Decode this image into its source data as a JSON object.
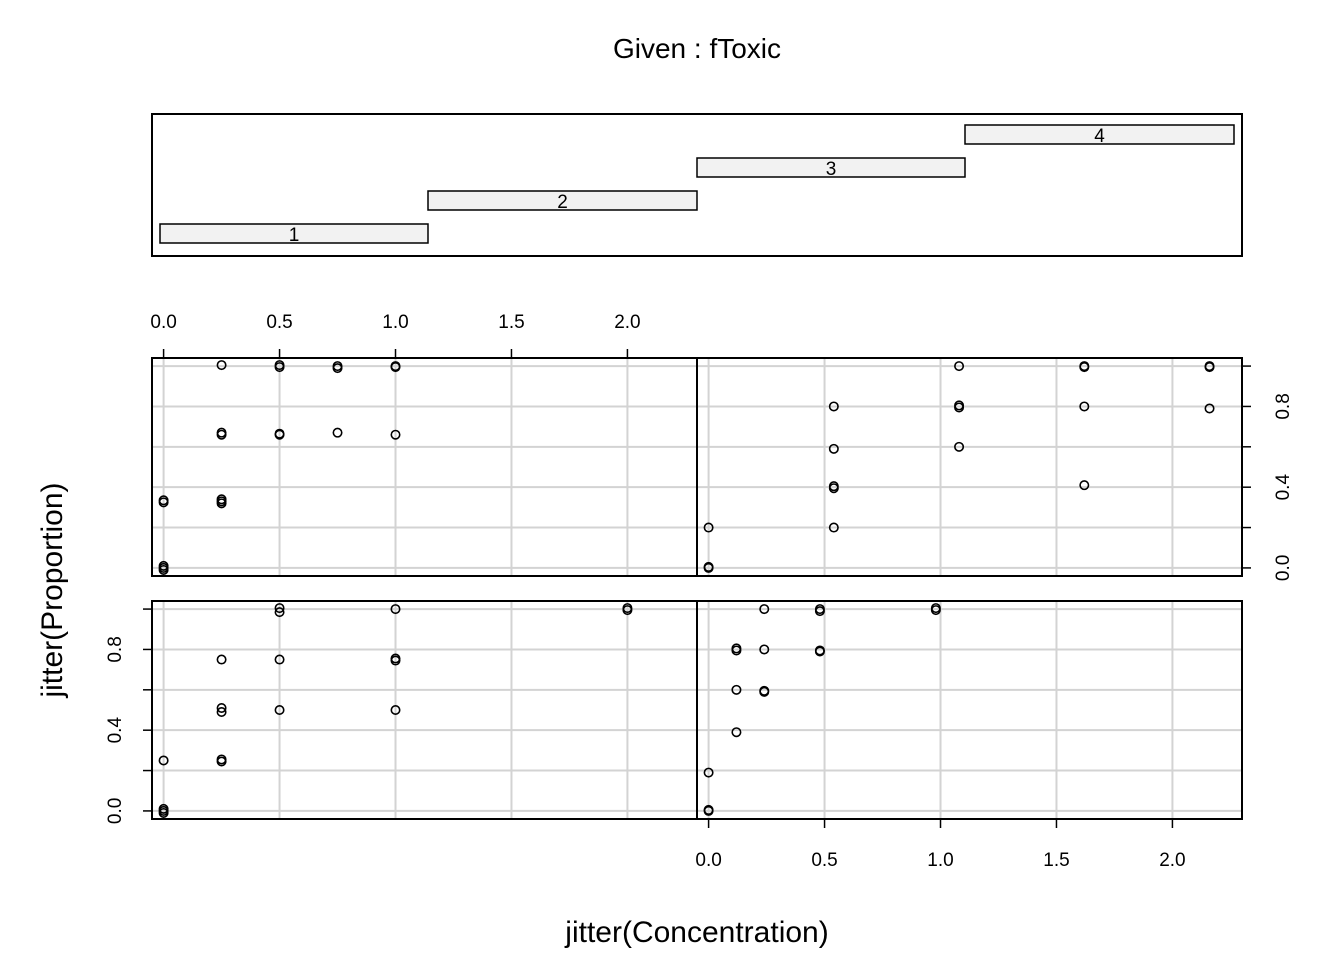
{
  "title": "Given : fToxic",
  "xlabel": "jitter(Concentration)",
  "ylabel": "jitter(Proportion)",
  "given_levels": [
    "1",
    "2",
    "3",
    "4"
  ],
  "x_tick_labels": [
    "0.0",
    "0.5",
    "1.0",
    "1.5",
    "2.0"
  ],
  "y_tick_labels": [
    "0.0",
    "0.4",
    "0.8"
  ],
  "chart_data": {
    "type": "scatter",
    "title": "Given : fToxic",
    "xlabel": "jitter(Concentration)",
    "ylabel": "jitter(Proportion)",
    "xlim": [
      -0.05,
      2.3
    ],
    "ylim": [
      -0.04,
      1.04
    ],
    "x_ticks": [
      0,
      0.5,
      1.0,
      1.5,
      2.0
    ],
    "y_ticks": [
      0,
      0.2,
      0.4,
      0.6,
      0.8,
      1.0
    ],
    "grid": true,
    "conditioning": {
      "variable": "fToxic",
      "levels": [
        "1",
        "2",
        "3",
        "4"
      ],
      "layout": "2x2",
      "order": "bottom-left, bottom-right, top-left, top-right"
    },
    "panels": [
      {
        "level": "1",
        "position": "bottom-left",
        "points": [
          [
            0,
            0
          ],
          [
            0,
            0.01
          ],
          [
            0,
            -0.01
          ],
          [
            0,
            0.25
          ],
          [
            0.25,
            0.245
          ],
          [
            0.25,
            0.255
          ],
          [
            0.25,
            0.49
          ],
          [
            0.25,
            0.51
          ],
          [
            0.25,
            0.75
          ],
          [
            0.5,
            0.5
          ],
          [
            0.5,
            0.75
          ],
          [
            0.5,
            0.985
          ],
          [
            0.5,
            1.005
          ],
          [
            1.0,
            0.5
          ],
          [
            1.0,
            0.745
          ],
          [
            1.0,
            0.755
          ],
          [
            1.0,
            1.0
          ],
          [
            2.0,
            0.995
          ],
          [
            2.0,
            1.005
          ]
        ]
      },
      {
        "level": "2",
        "position": "bottom-right",
        "points": [
          [
            0,
            0
          ],
          [
            0,
            0.005
          ],
          [
            0,
            0.19
          ],
          [
            0.12,
            0.39
          ],
          [
            0.12,
            0.6
          ],
          [
            0.12,
            0.795
          ],
          [
            0.12,
            0.805
          ],
          [
            0.24,
            0.59
          ],
          [
            0.24,
            0.595
          ],
          [
            0.24,
            0.8
          ],
          [
            0.24,
            1.0
          ],
          [
            0.48,
            0.79
          ],
          [
            0.48,
            0.795
          ],
          [
            0.48,
            0.99
          ],
          [
            0.48,
            1.0
          ],
          [
            0.98,
            0.995
          ],
          [
            0.98,
            1.005
          ]
        ]
      },
      {
        "level": "3",
        "position": "top-left",
        "points": [
          [
            0,
            0
          ],
          [
            0,
            0.01
          ],
          [
            0,
            -0.01
          ],
          [
            0,
            0.325
          ],
          [
            0,
            0.335
          ],
          [
            0.25,
            0.32
          ],
          [
            0.25,
            0.33
          ],
          [
            0.25,
            0.34
          ],
          [
            0.25,
            0.66
          ],
          [
            0.25,
            0.67
          ],
          [
            0.25,
            1.005
          ],
          [
            0.5,
            0.66
          ],
          [
            0.5,
            0.665
          ],
          [
            0.5,
            0.995
          ],
          [
            0.5,
            1.005
          ],
          [
            0.75,
            0.67
          ],
          [
            0.75,
            0.99
          ],
          [
            0.75,
            1.0
          ],
          [
            1.0,
            0.66
          ],
          [
            1.0,
            0.995
          ],
          [
            1.0,
            1.0
          ]
        ]
      },
      {
        "level": "4",
        "position": "top-right",
        "points": [
          [
            0,
            0
          ],
          [
            0,
            0.005
          ],
          [
            0,
            0.2
          ],
          [
            0.54,
            0.2
          ],
          [
            0.54,
            0.395
          ],
          [
            0.54,
            0.405
          ],
          [
            0.54,
            0.59
          ],
          [
            0.54,
            0.8
          ],
          [
            1.08,
            0.6
          ],
          [
            1.08,
            0.795
          ],
          [
            1.08,
            0.805
          ],
          [
            1.08,
            1.0
          ],
          [
            1.62,
            0.41
          ],
          [
            1.62,
            0.8
          ],
          [
            1.62,
            0.995
          ],
          [
            1.62,
            1.0
          ],
          [
            2.16,
            0.79
          ],
          [
            2.16,
            0.995
          ],
          [
            2.16,
            1.0
          ]
        ]
      }
    ]
  }
}
